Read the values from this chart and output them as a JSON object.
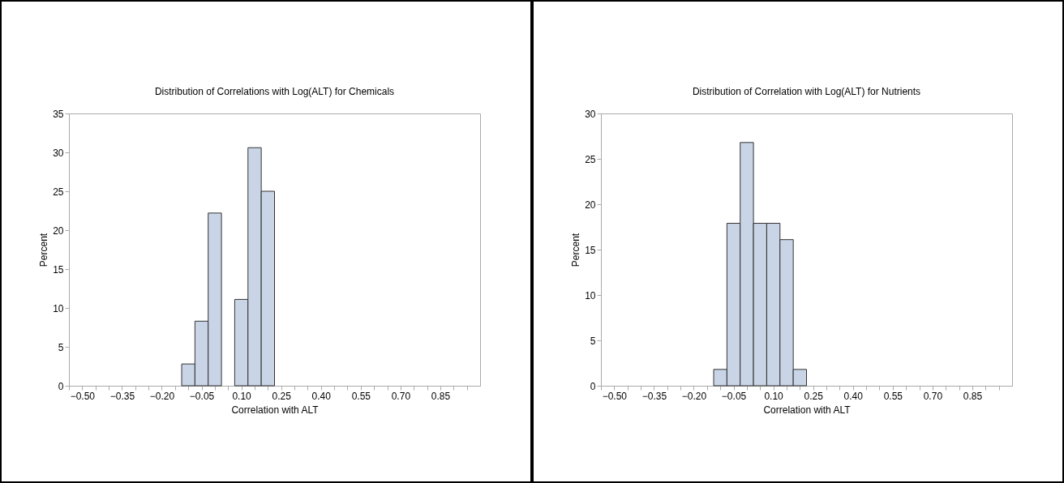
{
  "chart_data": [
    {
      "type": "histogram",
      "title": "Distribution of Correlations with Log(ALT) for Chemicals",
      "xlabel": "Correlation with ALT",
      "ylabel": "Percent",
      "color": "#c9d5e6",
      "bins": [
        -0.125,
        -0.075,
        -0.025,
        0.025,
        0.075,
        0.125,
        0.175,
        0.225
      ],
      "values": [
        2.8,
        8.3,
        22.2,
        0,
        11.1,
        30.6,
        25.0
      ],
      "xlim": [
        -0.55,
        1.0
      ],
      "xticks": [
        {
          "value": -0.55,
          "label": null
        },
        {
          "value": -0.5,
          "label": "−0.50"
        },
        {
          "value": -0.45,
          "label": null
        },
        {
          "value": -0.4,
          "label": null
        },
        {
          "value": -0.35,
          "label": "−0.35"
        },
        {
          "value": -0.3,
          "label": null
        },
        {
          "value": -0.25,
          "label": null
        },
        {
          "value": -0.2,
          "label": "−0.20"
        },
        {
          "value": -0.15,
          "label": null
        },
        {
          "value": -0.1,
          "label": null
        },
        {
          "value": -0.05,
          "label": "−0.05"
        },
        {
          "value": 0,
          "label": null
        },
        {
          "value": 0.05,
          "label": null
        },
        {
          "value": 0.1,
          "label": "0.10"
        },
        {
          "value": 0.15,
          "label": null
        },
        {
          "value": 0.2,
          "label": null
        },
        {
          "value": 0.25,
          "label": "0.25"
        },
        {
          "value": 0.3,
          "label": null
        },
        {
          "value": 0.35,
          "label": null
        },
        {
          "value": 0.4,
          "label": "0.40"
        },
        {
          "value": 0.45,
          "label": null
        },
        {
          "value": 0.5,
          "label": null
        },
        {
          "value": 0.55,
          "label": "0.55"
        },
        {
          "value": 0.6,
          "label": null
        },
        {
          "value": 0.65,
          "label": null
        },
        {
          "value": 0.7,
          "label": "0.70"
        },
        {
          "value": 0.75,
          "label": null
        },
        {
          "value": 0.8,
          "label": null
        },
        {
          "value": 0.85,
          "label": "0.85"
        },
        {
          "value": 0.9,
          "label": null
        },
        {
          "value": 0.95,
          "label": null
        }
      ],
      "ylim": [
        0,
        35
      ],
      "yticks": [
        0,
        5,
        10,
        15,
        20,
        25,
        30,
        35
      ]
    },
    {
      "type": "histogram",
      "title": "Distribution of Correlation with Log(ALT) for Nutrients",
      "xlabel": "Correlation with ALT",
      "ylabel": "Percent",
      "color": "#c9d5e6",
      "bins": [
        -0.125,
        -0.075,
        -0.025,
        0.025,
        0.075,
        0.125,
        0.175,
        0.225
      ],
      "values": [
        1.8,
        17.9,
        26.8,
        17.9,
        17.9,
        16.1,
        1.8
      ],
      "xlim": [
        -0.55,
        1.0
      ],
      "xticks": [
        {
          "value": -0.55,
          "label": null
        },
        {
          "value": -0.5,
          "label": "−0.50"
        },
        {
          "value": -0.45,
          "label": null
        },
        {
          "value": -0.4,
          "label": null
        },
        {
          "value": -0.35,
          "label": "−0.35"
        },
        {
          "value": -0.3,
          "label": null
        },
        {
          "value": -0.25,
          "label": null
        },
        {
          "value": -0.2,
          "label": "−0.20"
        },
        {
          "value": -0.15,
          "label": null
        },
        {
          "value": -0.1,
          "label": null
        },
        {
          "value": -0.05,
          "label": "−0.05"
        },
        {
          "value": 0,
          "label": null
        },
        {
          "value": 0.05,
          "label": null
        },
        {
          "value": 0.1,
          "label": "0.10"
        },
        {
          "value": 0.15,
          "label": null
        },
        {
          "value": 0.2,
          "label": null
        },
        {
          "value": 0.25,
          "label": "0.25"
        },
        {
          "value": 0.3,
          "label": null
        },
        {
          "value": 0.35,
          "label": null
        },
        {
          "value": 0.4,
          "label": "0.40"
        },
        {
          "value": 0.45,
          "label": null
        },
        {
          "value": 0.5,
          "label": null
        },
        {
          "value": 0.55,
          "label": "0.55"
        },
        {
          "value": 0.6,
          "label": null
        },
        {
          "value": 0.65,
          "label": null
        },
        {
          "value": 0.7,
          "label": "0.70"
        },
        {
          "value": 0.75,
          "label": null
        },
        {
          "value": 0.8,
          "label": null
        },
        {
          "value": 0.85,
          "label": "0.85"
        },
        {
          "value": 0.9,
          "label": null
        },
        {
          "value": 0.95,
          "label": null
        }
      ],
      "ylim": [
        0,
        30
      ],
      "yticks": [
        0,
        5,
        10,
        15,
        20,
        25,
        30
      ]
    }
  ]
}
